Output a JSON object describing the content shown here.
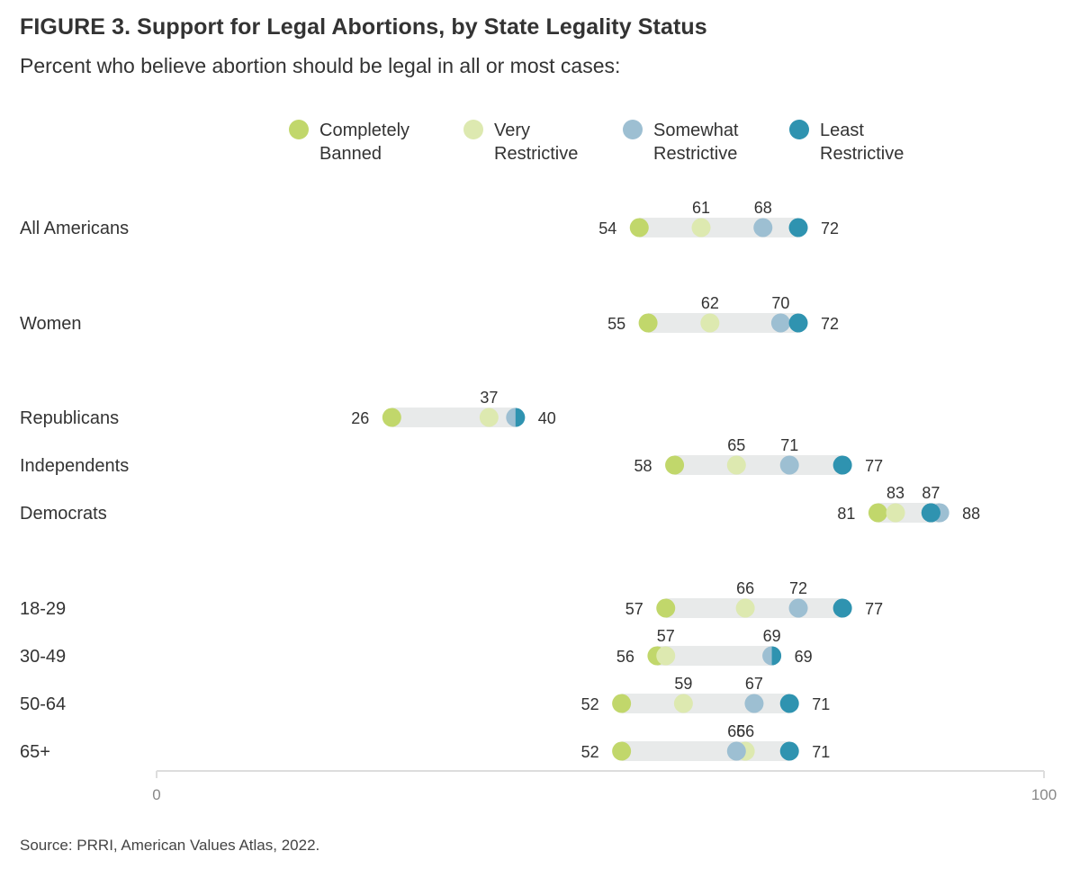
{
  "title": "FIGURE 3.  Support for Legal Abortions, by State Legality Status",
  "subtitle": "Percent who believe abortion should be legal in all or most cases:",
  "source": "Source: PRRI, American Values Atlas, 2022.",
  "colors": {
    "completely_banned": "#c1d76b",
    "very_restrictive": "#dde9b0",
    "somewhat_restrictive": "#9dbfd2",
    "least_restrictive": "#2f93b0",
    "track": "#e8eaea",
    "axis": "#dddddd"
  },
  "chart_data": {
    "type": "dot",
    "title": "FIGURE 3.  Support for Legal Abortions, by State Legality Status",
    "subtitle": "Percent who believe abortion should be legal in all or most cases:",
    "xlim": [
      0,
      100
    ],
    "x_ticks": [
      "0",
      "100"
    ],
    "grid": false,
    "legend_position": "top",
    "series": [
      {
        "key": "completely_banned",
        "name": "Completely\nBanned"
      },
      {
        "key": "very_restrictive",
        "name": "Very\nRestrictive"
      },
      {
        "key": "somewhat_restrictive",
        "name": "Somewhat\nRestrictive"
      },
      {
        "key": "least_restrictive",
        "name": "Least\nRestrictive"
      }
    ],
    "categories": [
      "All Americans",
      "Women",
      "Republicans",
      "Independents",
      "Democrats",
      "18-29",
      "30-49",
      "50-64",
      "65+"
    ],
    "groups": [
      0,
      1,
      2,
      2,
      2,
      3,
      3,
      3,
      3
    ],
    "values": {
      "completely_banned": [
        54,
        55,
        26,
        58,
        81,
        57,
        56,
        52,
        52
      ],
      "very_restrictive": [
        61,
        62,
        37,
        65,
        83,
        66,
        57,
        59,
        66
      ],
      "somewhat_restrictive": [
        68,
        70,
        40,
        71,
        88,
        72,
        69,
        67,
        65
      ],
      "least_restrictive": [
        72,
        72,
        40,
        77,
        87,
        77,
        69,
        71,
        71
      ]
    },
    "above_labels": [
      [
        "61",
        "68"
      ],
      [
        "62",
        "70"
      ],
      [
        "37"
      ],
      [
        "65",
        "71"
      ],
      [
        "83",
        "87"
      ],
      [
        "66",
        "72"
      ],
      [
        "57",
        "69"
      ],
      [
        "59",
        "67"
      ],
      [
        "65",
        "66"
      ]
    ],
    "left_labels": [
      "54",
      "55",
      "26",
      "58",
      "81",
      "57",
      "56",
      "52",
      "52"
    ],
    "right_labels": [
      "72",
      "72",
      "40",
      "77",
      "88",
      "77",
      "69",
      "71",
      "71"
    ]
  }
}
